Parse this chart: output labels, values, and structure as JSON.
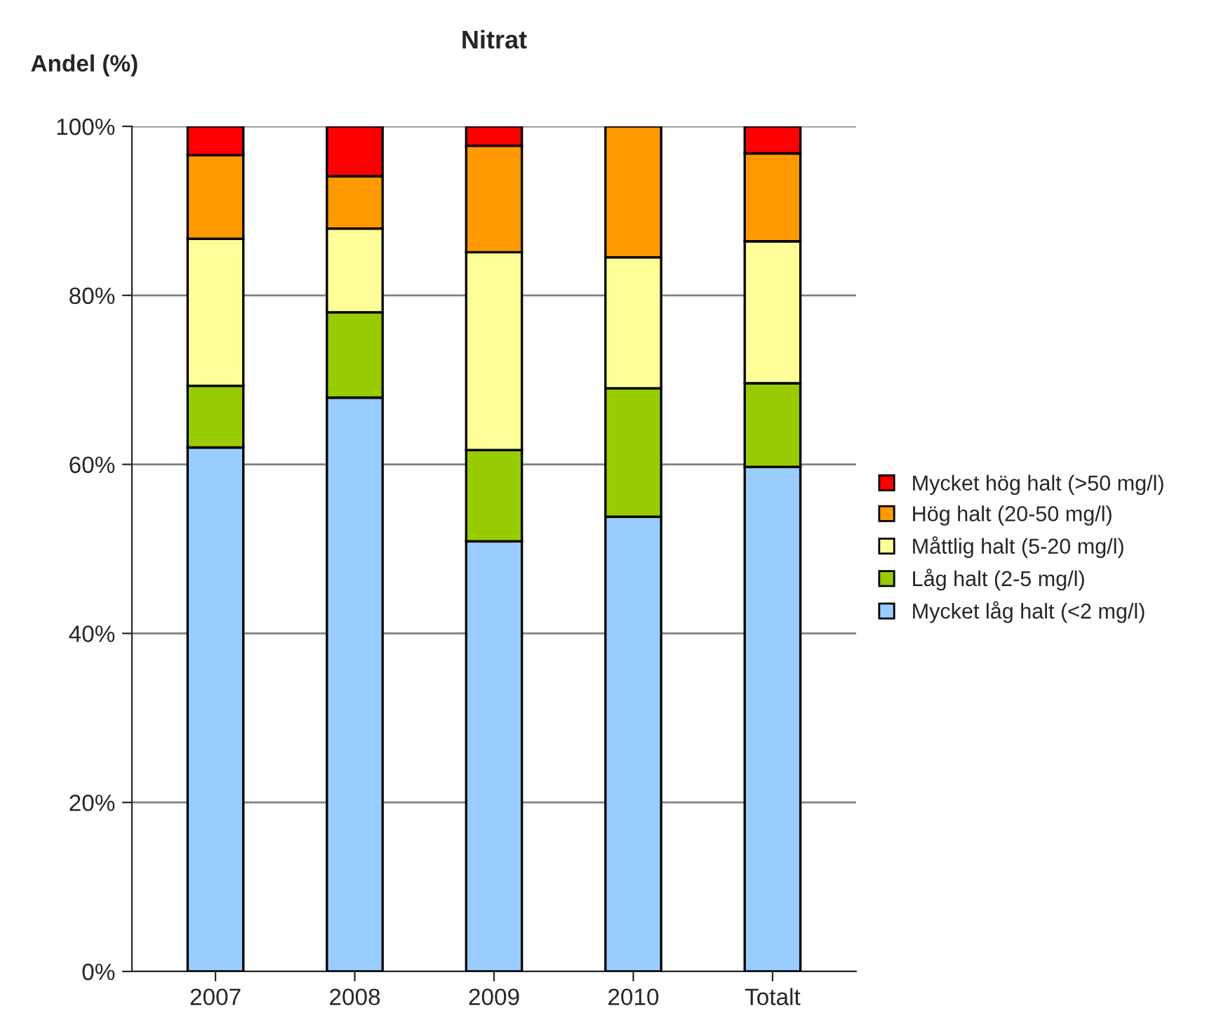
{
  "chart_data": {
    "type": "bar",
    "title": "Nitrat",
    "ylabel": "Andel (%)",
    "stacked": true,
    "categories": [
      "2007",
      "2008",
      "2009",
      "2010",
      "Totalt"
    ],
    "series": [
      {
        "name": "Mycket låg halt (<2 mg/l)",
        "color": "#99ccff",
        "values": [
          62,
          67.9,
          50.9,
          53.8,
          59.7
        ]
      },
      {
        "name": "Låg halt (2-5 mg/l)",
        "color": "#99cc00",
        "values": [
          7.3,
          10.1,
          10.8,
          15.2,
          9.9
        ]
      },
      {
        "name": "Måttlig halt (5-20 mg/l)",
        "color": "#ffff99",
        "values": [
          17.4,
          9.9,
          23.4,
          15.5,
          16.8
        ]
      },
      {
        "name": "Hög halt (20-50 mg/l)",
        "color": "#ff9900",
        "values": [
          9.9,
          6.2,
          12.6,
          15.5,
          10.4
        ]
      },
      {
        "name": "Mycket hög halt (>50 mg/l)",
        "color": "#ff0000",
        "values": [
          3.4,
          5.9,
          2.3,
          0,
          3.2
        ]
      }
    ],
    "ylim": [
      0,
      100
    ],
    "yticks": [
      {
        "value": 0,
        "label": "0%"
      },
      {
        "value": 20,
        "label": "20%"
      },
      {
        "value": 40,
        "label": "40%"
      },
      {
        "value": 60,
        "label": "60%"
      },
      {
        "value": 80,
        "label": "80%"
      },
      {
        "value": 100,
        "label": "100%"
      }
    ],
    "grid": "y",
    "legend": "right"
  }
}
